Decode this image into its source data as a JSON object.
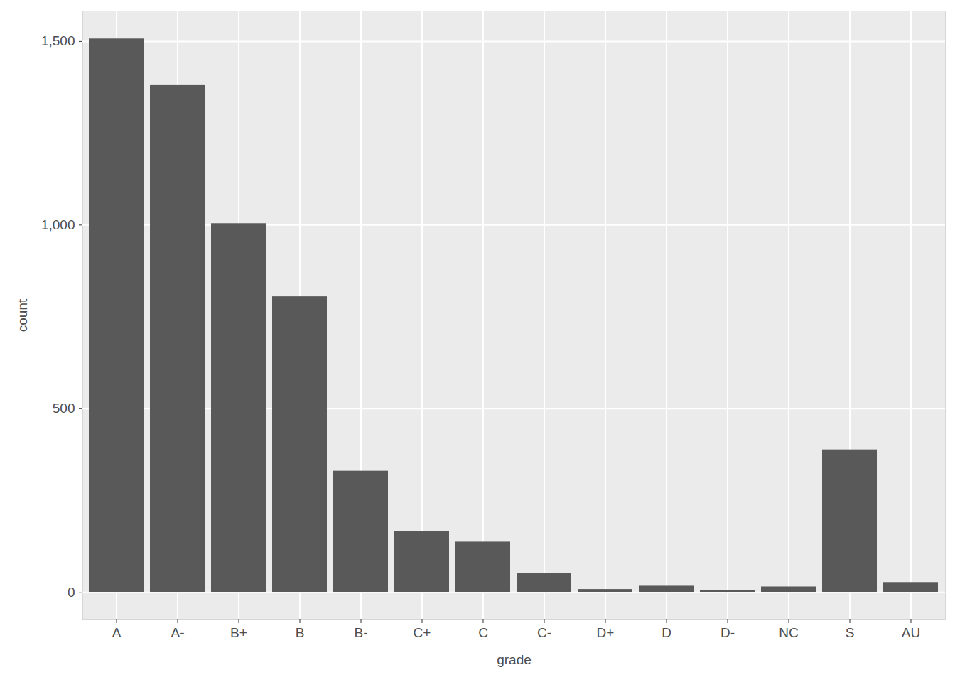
{
  "chart_data": {
    "type": "bar",
    "xlabel": "grade",
    "ylabel": "count",
    "categories": [
      "A",
      "A-",
      "B+",
      "B",
      "B-",
      "C+",
      "C",
      "C-",
      "D+",
      "D",
      "D-",
      "NC",
      "S",
      "AU"
    ],
    "values": [
      1507,
      1382,
      1004,
      805,
      330,
      166,
      137,
      52,
      8,
      17,
      5,
      15,
      388,
      27
    ],
    "color": "#595959",
    "ylim": [
      -75,
      1583
    ],
    "yticks": [
      0,
      500,
      1000,
      1500
    ],
    "grid": true
  }
}
